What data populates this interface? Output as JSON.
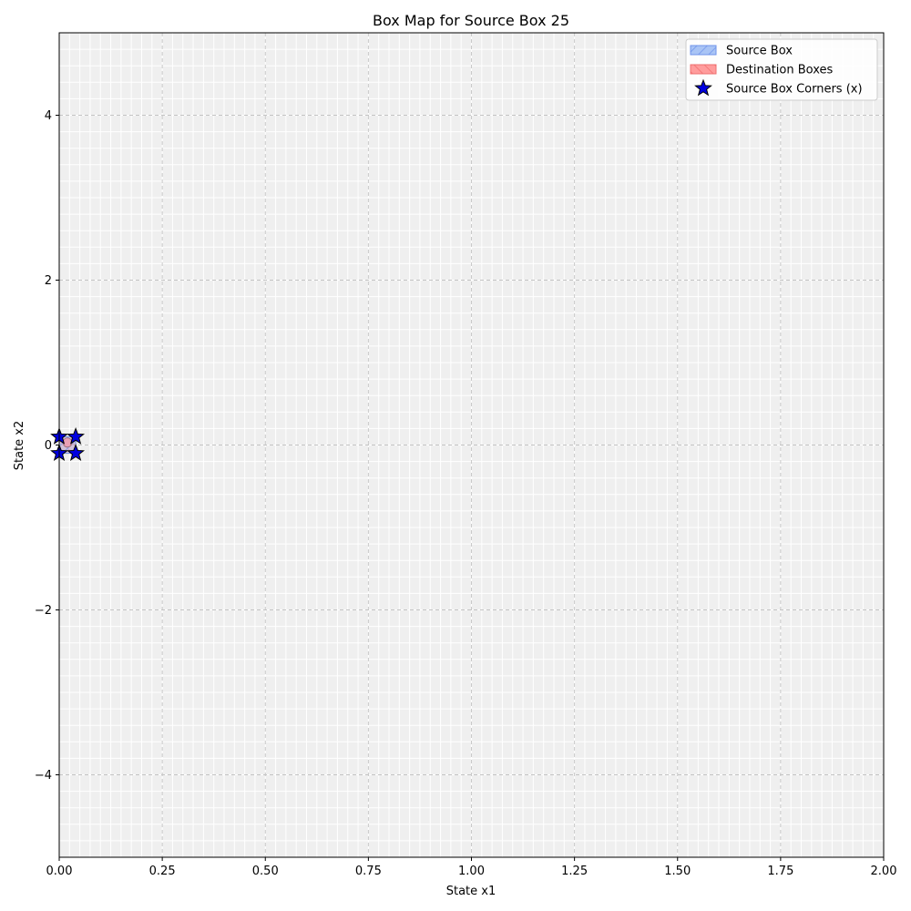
{
  "chart_data": {
    "type": "scatter",
    "title": "Box Map for Source Box 25",
    "xlabel": "State x1",
    "ylabel": "State x2",
    "xlim": [
      0,
      2
    ],
    "ylim": [
      -5,
      5
    ],
    "x_ticks": [
      0,
      0.25,
      0.5,
      0.75,
      1.0,
      1.25,
      1.5,
      1.75,
      2.0
    ],
    "x_tick_labels": [
      "0.00",
      "0.25",
      "0.50",
      "0.75",
      "1.00",
      "1.25",
      "1.50",
      "1.75",
      "2.00"
    ],
    "y_ticks": [
      -4,
      -2,
      0,
      2,
      4
    ],
    "y_tick_labels": [
      "−4",
      "−2",
      "0",
      "2",
      "4"
    ],
    "grid": true,
    "background_cell_grid": {
      "x_step": 0.025,
      "y_step": 0.2,
      "cell_color": "#efefef",
      "line_color": "#ffffff"
    },
    "legend_position": "top-right",
    "legend": [
      {
        "label": "Source Box",
        "kind": "patch",
        "face": "#a9c4f5",
        "edge": "#6f94ea",
        "hatch": "//"
      },
      {
        "label": "Destination Boxes",
        "kind": "patch",
        "face": "#ff9c9c",
        "edge": "#ef6f6f",
        "hatch": "\\\\"
      },
      {
        "label": "Source Box Corners (x)",
        "kind": "marker",
        "face": "#0000e0",
        "edge": "#000000",
        "marker": "star"
      }
    ],
    "source_box": {
      "x": [
        0.0,
        0.04
      ],
      "y": [
        -0.1,
        0.1
      ]
    },
    "destination_boxes": [
      {
        "x": [
          0.0,
          0.04
        ],
        "y": [
          -0.1,
          0.1
        ]
      }
    ],
    "series": [
      {
        "name": "Source Box Corners (x)",
        "points": [
          [
            0.0,
            -0.1
          ],
          [
            0.0,
            0.1
          ],
          [
            0.04,
            -0.1
          ],
          [
            0.04,
            0.1
          ]
        ]
      }
    ],
    "image_point": {
      "x": 0.02,
      "y": 0.03,
      "color": "#e8a0b4"
    }
  }
}
